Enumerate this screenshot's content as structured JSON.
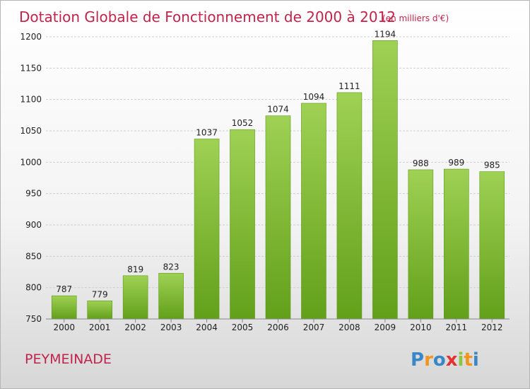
{
  "chart_data": {
    "type": "bar",
    "title": "Dotation Globale de Fonctionnement de 2000 à 2012",
    "subtitle": "(en milliers d'€)",
    "categories": [
      "2000",
      "2001",
      "2002",
      "2003",
      "2004",
      "2005",
      "2006",
      "2007",
      "2008",
      "2009",
      "2010",
      "2011",
      "2012"
    ],
    "values": [
      787,
      779,
      819,
      823,
      1037,
      1052,
      1074,
      1094,
      1111,
      1194,
      988,
      989,
      985
    ],
    "value_labels": [
      "787",
      "779",
      "819",
      "823",
      "1037",
      "1052",
      "1074",
      "1094",
      "1111",
      "1194",
      "988",
      "989",
      "985"
    ],
    "yticks": [
      750,
      800,
      850,
      900,
      950,
      1000,
      1050,
      1100,
      1150,
      1200
    ],
    "ylim": [
      750,
      1210
    ],
    "grid": true,
    "bar_color": "#8cc63f",
    "bar_color_dark": "#62a01a"
  },
  "commune": "PEYMEINADE",
  "brand": {
    "letters": [
      "P",
      "r",
      "o",
      "x",
      "i",
      "t",
      "i"
    ],
    "colors": [
      "#3a87c8",
      "#f0951e",
      "#3a87c8",
      "#e5312f",
      "#8cc63f",
      "#f0951e",
      "#3a87c8"
    ]
  }
}
